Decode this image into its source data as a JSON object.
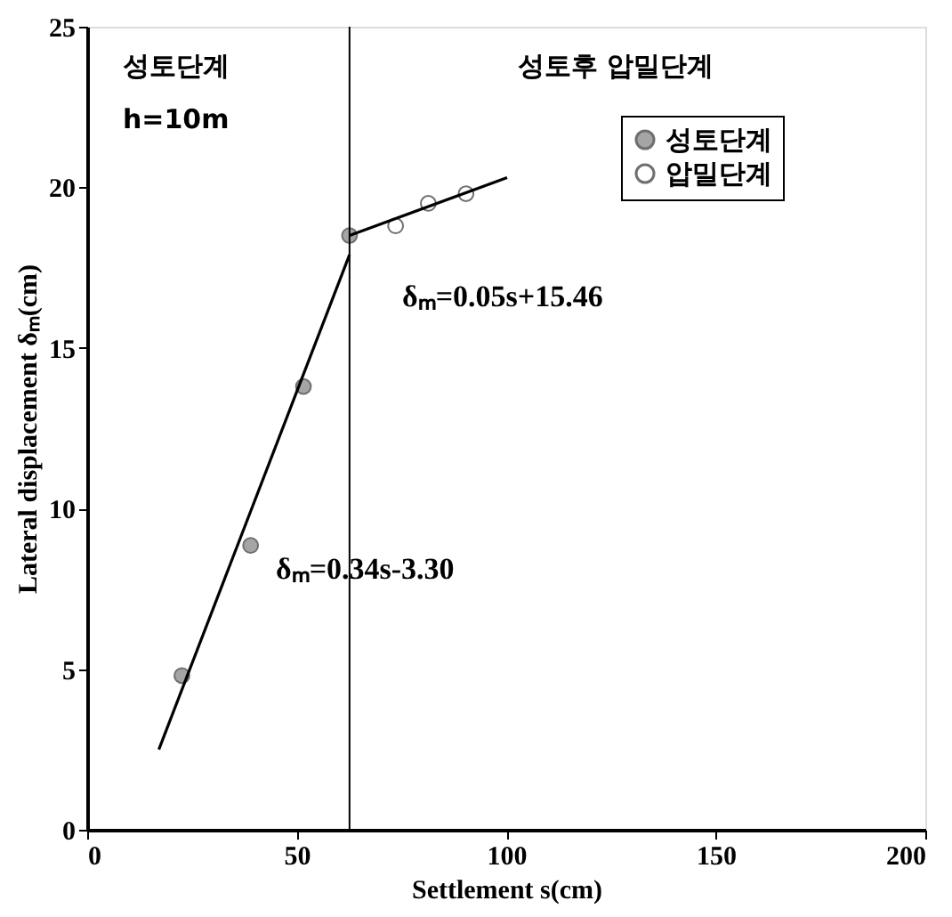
{
  "chart_data": {
    "type": "scatter",
    "xlabel": "Settlement s(cm)",
    "ylabel": "Lateral displacement δₘ(cm)",
    "xlim": [
      0,
      200
    ],
    "xticks": [
      0,
      50,
      100,
      150,
      200
    ],
    "ylim": [
      0,
      25
    ],
    "yticks": [
      0,
      5,
      10,
      15,
      20,
      25
    ],
    "grid": false,
    "legend": "top right",
    "series": [
      {
        "name": "성토단계",
        "color": "#808080",
        "marker": "circle",
        "x": [
          22.6,
          39,
          51.6,
          62.6
        ],
        "values": [
          4.8,
          8.85,
          13.8,
          18.5
        ]
      },
      {
        "name": "압밀단계",
        "color": "#ffffff",
        "marker": "circle",
        "x": [
          73.6,
          81.4,
          90.4
        ],
        "values": [
          18.8,
          19.5,
          19.8
        ]
      },
      {
        "type": "line",
        "color": "#000000",
        "x": [
          17.1,
          62.6
        ],
        "values": [
          2.5,
          17.9
        ]
      },
      {
        "type": "line",
        "color": "#000000",
        "x": [
          62.6,
          100.2
        ],
        "values": [
          18.5,
          20.3
        ]
      }
    ],
    "ref_lines": [
      {
        "axis": "x",
        "value": 62.6,
        "color": "#000000"
      }
    ],
    "annotations": [
      "성토단계",
      "h=10m",
      "성토후 압밀단계",
      "δₘ=0.05s+15.46",
      "δₘ=0.34s-3.30"
    ]
  }
}
